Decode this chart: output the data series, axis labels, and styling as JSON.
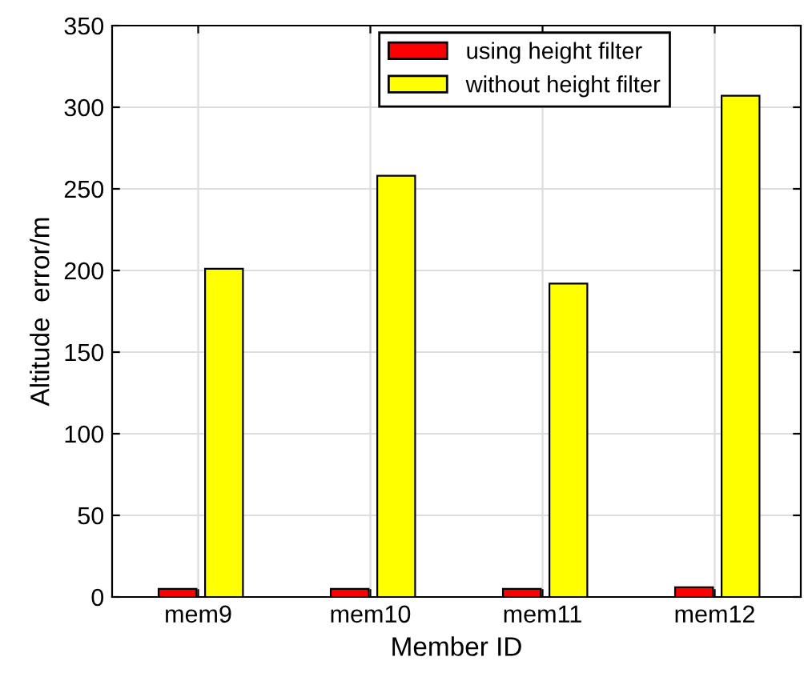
{
  "chart_data": {
    "type": "bar",
    "xlabel": "Member ID",
    "ylabel": "Altitude  error/m",
    "categories": [
      "mem9",
      "mem10",
      "mem11",
      "mem12"
    ],
    "series": [
      {
        "name": "using height filter",
        "color": "#ff0000",
        "values": [
          5,
          5,
          5,
          6
        ]
      },
      {
        "name": "without height filter",
        "color": "#ffff00",
        "values": [
          201,
          258,
          192,
          307
        ]
      }
    ],
    "ylim": [
      0,
      350
    ],
    "yticks": [
      0,
      50,
      100,
      150,
      200,
      250,
      300,
      350
    ],
    "grid": true,
    "legend": "top right"
  }
}
